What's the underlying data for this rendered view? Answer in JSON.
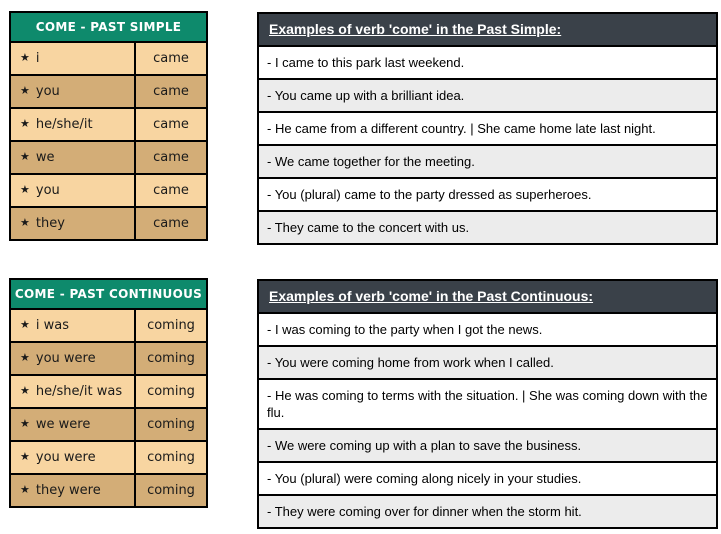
{
  "colors": {
    "green_header": "#0e8a6c",
    "tan_light": "#f8d5a1",
    "tan_dark": "#d3ad77",
    "dark_header": "#3a4149",
    "gray_row": "#ececec",
    "border_black": "#000000",
    "text_dark": "#1a1a1a"
  },
  "icons": {
    "star": "★"
  },
  "tables": [
    {
      "title": "COME - PAST SIMPLE",
      "rows": [
        {
          "subject": "i",
          "verb": "came"
        },
        {
          "subject": "you",
          "verb": "came"
        },
        {
          "subject": "he/she/it",
          "verb": "came"
        },
        {
          "subject": "we",
          "verb": "came"
        },
        {
          "subject": "you",
          "verb": "came"
        },
        {
          "subject": "they",
          "verb": "came"
        }
      ]
    },
    {
      "title": "COME - PAST CONTINUOUS",
      "rows": [
        {
          "subject": "i was",
          "verb": "coming"
        },
        {
          "subject": "you were",
          "verb": "coming"
        },
        {
          "subject": "he/she/it was",
          "verb": "coming"
        },
        {
          "subject": "we were",
          "verb": "coming"
        },
        {
          "subject": "you were",
          "verb": "coming"
        },
        {
          "subject": "they were",
          "verb": "coming"
        }
      ]
    }
  ],
  "example_boxes": [
    {
      "title": "Examples of verb 'come' in the Past Simple:",
      "examples": [
        "- I came to this park last weekend.",
        "- You came up with a brilliant idea.",
        "- He came from a different country. | She came home late last night.",
        "- We came together for the meeting.",
        "- You (plural) came to the party dressed as superheroes.",
        "- They came to the concert with us."
      ]
    },
    {
      "title": "Examples of verb 'come' in the Past Continuous:",
      "examples": [
        "- I was coming to the party when I got the news.",
        "- You were coming home from work when I called.",
        "- He was coming to terms with the situation. | She was coming down with the flu.",
        "- We were coming up with a plan to save the business.",
        "- You (plural) were coming along nicely in your studies.",
        "- They were coming over for dinner when the storm hit."
      ]
    }
  ]
}
